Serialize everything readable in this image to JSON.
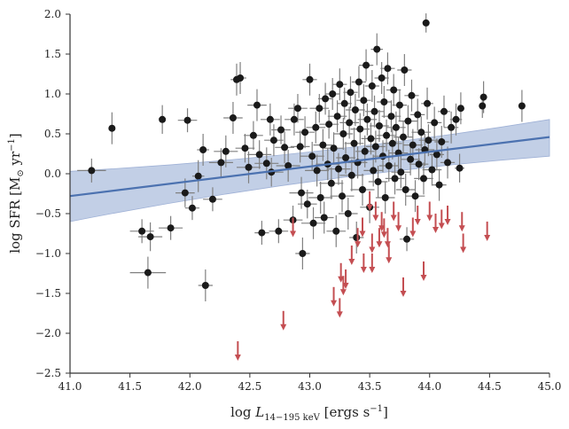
{
  "chart_data": {
    "type": "scatter",
    "title": "",
    "xlabel": {
      "main": "log ",
      "sym": "L",
      "sub": "14−195 keV",
      "unit": " [ergs s",
      "unit_sup": "−1",
      "unit_end": "]"
    },
    "ylabel": {
      "main": "log SFR [M",
      "sub": "⊙",
      "mid": " yr",
      "sup": "−1",
      "end": "]"
    },
    "xlim": [
      41.0,
      45.0
    ],
    "ylim": [
      -2.5,
      2.0
    ],
    "x_ticks": [
      "41.0",
      "41.5",
      "42.0",
      "42.5",
      "43.0",
      "43.5",
      "44.0",
      "44.5",
      "45.0"
    ],
    "y_ticks": [
      "−2.5",
      "−2.0",
      "−1.5",
      "−1.0",
      "−0.5",
      "0.0",
      "0.5",
      "1.0",
      "1.5",
      "2.0"
    ],
    "grid": false,
    "colors": {
      "points": "#1a1a1a",
      "errorbars": "#808080",
      "upper_limits": "#c44e52",
      "fit_line": "#4c72b0",
      "fit_band": "#b3c3e0"
    },
    "fit": {
      "x": [
        41.0,
        45.0
      ],
      "y": [
        -0.28,
        0.46
      ],
      "band_lower": [
        -0.6,
        0.22
      ],
      "band_upper": [
        0.03,
        0.68
      ]
    },
    "detections": [
      {
        "x": 41.18,
        "y": 0.04,
        "xerr": 0.12,
        "yerr": 0.15
      },
      {
        "x": 41.35,
        "y": 0.57,
        "xerr": 0.0,
        "yerr": 0.2
      },
      {
        "x": 41.77,
        "y": 0.68,
        "xerr": 0.0,
        "yerr": 0.18
      },
      {
        "x": 41.98,
        "y": 0.67,
        "xerr": 0.08,
        "yerr": 0.15
      },
      {
        "x": 41.6,
        "y": -0.72,
        "xerr": 0.1,
        "yerr": 0.15
      },
      {
        "x": 41.67,
        "y": -0.79,
        "xerr": 0.1,
        "yerr": 0.18
      },
      {
        "x": 41.84,
        "y": -0.68,
        "xerr": 0.1,
        "yerr": 0.15
      },
      {
        "x": 41.96,
        "y": -0.24,
        "xerr": 0.08,
        "yerr": 0.18
      },
      {
        "x": 42.02,
        "y": -0.43,
        "xerr": 0.06,
        "yerr": 0.15
      },
      {
        "x": 42.07,
        "y": -0.03,
        "xerr": 0.05,
        "yerr": 0.2
      },
      {
        "x": 42.19,
        "y": -0.32,
        "xerr": 0.08,
        "yerr": 0.15
      },
      {
        "x": 42.11,
        "y": 0.3,
        "xerr": 0.05,
        "yerr": 0.2
      },
      {
        "x": 41.65,
        "y": -1.24,
        "xerr": 0.15,
        "yerr": 0.2
      },
      {
        "x": 42.13,
        "y": -1.4,
        "xerr": 0.06,
        "yerr": 0.2
      },
      {
        "x": 42.26,
        "y": 0.14,
        "xerr": 0.1,
        "yerr": 0.18
      },
      {
        "x": 42.3,
        "y": 0.28,
        "xerr": 0.1,
        "yerr": 0.2
      },
      {
        "x": 42.36,
        "y": 0.7,
        "xerr": 0.08,
        "yerr": 0.2
      },
      {
        "x": 42.39,
        "y": 1.18,
        "xerr": 0.05,
        "yerr": 0.2
      },
      {
        "x": 42.42,
        "y": 1.2,
        "xerr": 0.05,
        "yerr": 0.2
      },
      {
        "x": 42.46,
        "y": 0.32,
        "xerr": 0.08,
        "yerr": 0.18
      },
      {
        "x": 42.49,
        "y": 0.08,
        "xerr": 0.1,
        "yerr": 0.2
      },
      {
        "x": 42.53,
        "y": 0.48,
        "xerr": 0.08,
        "yerr": 0.18
      },
      {
        "x": 42.56,
        "y": 0.86,
        "xerr": 0.08,
        "yerr": 0.2
      },
      {
        "x": 42.58,
        "y": 0.24,
        "xerr": 0.1,
        "yerr": 0.18
      },
      {
        "x": 42.6,
        "y": -0.74,
        "xerr": 0.06,
        "yerr": 0.15
      },
      {
        "x": 42.64,
        "y": 0.13,
        "xerr": 0.1,
        "yerr": 0.2
      },
      {
        "x": 42.67,
        "y": 0.68,
        "xerr": 0.08,
        "yerr": 0.2
      },
      {
        "x": 42.68,
        "y": 0.02,
        "xerr": 0.1,
        "yerr": 0.18
      },
      {
        "x": 42.7,
        "y": 0.42,
        "xerr": 0.08,
        "yerr": 0.2
      },
      {
        "x": 42.74,
        "y": -0.72,
        "xerr": 0.08,
        "yerr": 0.15
      },
      {
        "x": 42.76,
        "y": 0.55,
        "xerr": 0.08,
        "yerr": 0.18
      },
      {
        "x": 42.79,
        "y": 0.33,
        "xerr": 0.08,
        "yerr": 0.2
      },
      {
        "x": 42.82,
        "y": 0.1,
        "xerr": 0.1,
        "yerr": 0.2
      },
      {
        "x": 42.86,
        "y": -0.58,
        "xerr": 0.08,
        "yerr": 0.18
      },
      {
        "x": 42.87,
        "y": 0.68,
        "xerr": 0.08,
        "yerr": 0.2
      },
      {
        "x": 42.9,
        "y": 0.82,
        "xerr": 0.08,
        "yerr": 0.18
      },
      {
        "x": 42.92,
        "y": 0.34,
        "xerr": 0.08,
        "yerr": 0.2
      },
      {
        "x": 42.93,
        "y": -0.24,
        "xerr": 0.1,
        "yerr": 0.2
      },
      {
        "x": 42.94,
        "y": -1.0,
        "xerr": 0.06,
        "yerr": 0.2
      },
      {
        "x": 42.96,
        "y": 0.52,
        "xerr": 0.08,
        "yerr": 0.2
      },
      {
        "x": 42.98,
        "y": -0.38,
        "xerr": 0.08,
        "yerr": 0.18
      },
      {
        "x": 43.0,
        "y": 1.18,
        "xerr": 0.06,
        "yerr": 0.2
      },
      {
        "x": 43.02,
        "y": 0.22,
        "xerr": 0.1,
        "yerr": 0.18
      },
      {
        "x": 43.03,
        "y": -0.62,
        "xerr": 0.1,
        "yerr": 0.2
      },
      {
        "x": 43.05,
        "y": 0.58,
        "xerr": 0.08,
        "yerr": 0.2
      },
      {
        "x": 43.06,
        "y": 0.04,
        "xerr": 0.1,
        "yerr": 0.2
      },
      {
        "x": 43.08,
        "y": 0.82,
        "xerr": 0.08,
        "yerr": 0.18
      },
      {
        "x": 43.09,
        "y": -0.3,
        "xerr": 0.1,
        "yerr": 0.2
      },
      {
        "x": 43.11,
        "y": 0.36,
        "xerr": 0.08,
        "yerr": 0.2
      },
      {
        "x": 43.12,
        "y": -0.55,
        "xerr": 0.08,
        "yerr": 0.2
      },
      {
        "x": 43.13,
        "y": 0.94,
        "xerr": 0.06,
        "yerr": 0.2
      },
      {
        "x": 43.15,
        "y": 0.12,
        "xerr": 0.1,
        "yerr": 0.2
      },
      {
        "x": 43.16,
        "y": 0.62,
        "xerr": 0.08,
        "yerr": 0.18
      },
      {
        "x": 43.18,
        "y": -0.12,
        "xerr": 0.1,
        "yerr": 0.2
      },
      {
        "x": 43.19,
        "y": 1.0,
        "xerr": 0.06,
        "yerr": 0.2
      },
      {
        "x": 43.2,
        "y": 0.32,
        "xerr": 0.08,
        "yerr": 0.2
      },
      {
        "x": 43.22,
        "y": -0.72,
        "xerr": 0.08,
        "yerr": 0.2
      },
      {
        "x": 43.23,
        "y": 0.72,
        "xerr": 0.08,
        "yerr": 0.2
      },
      {
        "x": 43.24,
        "y": 0.06,
        "xerr": 0.1,
        "yerr": 0.2
      },
      {
        "x": 43.25,
        "y": 1.12,
        "xerr": 0.06,
        "yerr": 0.2
      },
      {
        "x": 43.27,
        "y": -0.28,
        "xerr": 0.1,
        "yerr": 0.2
      },
      {
        "x": 43.28,
        "y": 0.5,
        "xerr": 0.08,
        "yerr": 0.2
      },
      {
        "x": 43.29,
        "y": 0.88,
        "xerr": 0.06,
        "yerr": 0.2
      },
      {
        "x": 43.3,
        "y": 0.2,
        "xerr": 0.08,
        "yerr": 0.2
      },
      {
        "x": 43.32,
        "y": -0.5,
        "xerr": 0.08,
        "yerr": 0.2
      },
      {
        "x": 43.33,
        "y": 0.64,
        "xerr": 0.08,
        "yerr": 0.2
      },
      {
        "x": 43.34,
        "y": 1.02,
        "xerr": 0.06,
        "yerr": 0.2
      },
      {
        "x": 43.35,
        "y": -0.02,
        "xerr": 0.1,
        "yerr": 0.2
      },
      {
        "x": 43.37,
        "y": 0.38,
        "xerr": 0.08,
        "yerr": 0.2
      },
      {
        "x": 43.38,
        "y": 0.8,
        "xerr": 0.08,
        "yerr": 0.2
      },
      {
        "x": 43.39,
        "y": -0.8,
        "xerr": 0.06,
        "yerr": 0.2
      },
      {
        "x": 43.4,
        "y": 0.14,
        "xerr": 0.08,
        "yerr": 0.2
      },
      {
        "x": 43.41,
        "y": 1.15,
        "xerr": 0.06,
        "yerr": 0.2
      },
      {
        "x": 43.42,
        "y": 0.56,
        "xerr": 0.08,
        "yerr": 0.2
      },
      {
        "x": 43.44,
        "y": -0.2,
        "xerr": 0.1,
        "yerr": 0.2
      },
      {
        "x": 43.45,
        "y": 0.92,
        "xerr": 0.06,
        "yerr": 0.2
      },
      {
        "x": 43.46,
        "y": 0.28,
        "xerr": 0.08,
        "yerr": 0.2
      },
      {
        "x": 43.47,
        "y": 1.36,
        "xerr": 0.06,
        "yerr": 0.2
      },
      {
        "x": 43.48,
        "y": 0.68,
        "xerr": 0.08,
        "yerr": 0.2
      },
      {
        "x": 43.5,
        "y": -0.42,
        "xerr": 0.08,
        "yerr": 0.2
      },
      {
        "x": 43.51,
        "y": 0.44,
        "xerr": 0.08,
        "yerr": 0.2
      },
      {
        "x": 43.52,
        "y": 1.1,
        "xerr": 0.06,
        "yerr": 0.2
      },
      {
        "x": 43.53,
        "y": 0.04,
        "xerr": 0.08,
        "yerr": 0.2
      },
      {
        "x": 43.54,
        "y": 0.78,
        "xerr": 0.08,
        "yerr": 0.2
      },
      {
        "x": 43.55,
        "y": 0.34,
        "xerr": 0.08,
        "yerr": 0.2
      },
      {
        "x": 43.56,
        "y": 1.56,
        "xerr": 0.05,
        "yerr": 0.2
      },
      {
        "x": 43.57,
        "y": -0.1,
        "xerr": 0.08,
        "yerr": 0.2
      },
      {
        "x": 43.58,
        "y": 0.6,
        "xerr": 0.08,
        "yerr": 0.2
      },
      {
        "x": 43.6,
        "y": 1.2,
        "xerr": 0.06,
        "yerr": 0.2
      },
      {
        "x": 43.61,
        "y": 0.22,
        "xerr": 0.08,
        "yerr": 0.2
      },
      {
        "x": 43.62,
        "y": 0.9,
        "xerr": 0.06,
        "yerr": 0.2
      },
      {
        "x": 43.63,
        "y": -0.3,
        "xerr": 0.08,
        "yerr": 0.2
      },
      {
        "x": 43.64,
        "y": 0.48,
        "xerr": 0.08,
        "yerr": 0.2
      },
      {
        "x": 43.65,
        "y": 1.32,
        "xerr": 0.06,
        "yerr": 0.2
      },
      {
        "x": 43.66,
        "y": 0.1,
        "xerr": 0.08,
        "yerr": 0.2
      },
      {
        "x": 43.68,
        "y": 0.72,
        "xerr": 0.08,
        "yerr": 0.2
      },
      {
        "x": 43.69,
        "y": 0.38,
        "xerr": 0.08,
        "yerr": 0.2
      },
      {
        "x": 43.7,
        "y": 1.05,
        "xerr": 0.06,
        "yerr": 0.2
      },
      {
        "x": 43.71,
        "y": -0.06,
        "xerr": 0.08,
        "yerr": 0.2
      },
      {
        "x": 43.72,
        "y": 0.58,
        "xerr": 0.08,
        "yerr": 0.2
      },
      {
        "x": 43.74,
        "y": 0.26,
        "xerr": 0.08,
        "yerr": 0.2
      },
      {
        "x": 43.75,
        "y": 0.86,
        "xerr": 0.06,
        "yerr": 0.2
      },
      {
        "x": 43.76,
        "y": 0.02,
        "xerr": 0.08,
        "yerr": 0.2
      },
      {
        "x": 43.78,
        "y": 0.46,
        "xerr": 0.08,
        "yerr": 0.2
      },
      {
        "x": 43.79,
        "y": 1.3,
        "xerr": 0.06,
        "yerr": 0.2
      },
      {
        "x": 43.8,
        "y": -0.2,
        "xerr": 0.08,
        "yerr": 0.2
      },
      {
        "x": 43.81,
        "y": -0.82,
        "xerr": 0.06,
        "yerr": 0.15
      },
      {
        "x": 43.82,
        "y": 0.66,
        "xerr": 0.08,
        "yerr": 0.2
      },
      {
        "x": 43.84,
        "y": 0.18,
        "xerr": 0.08,
        "yerr": 0.2
      },
      {
        "x": 43.85,
        "y": 0.98,
        "xerr": 0.06,
        "yerr": 0.2
      },
      {
        "x": 43.86,
        "y": 0.36,
        "xerr": 0.08,
        "yerr": 0.2
      },
      {
        "x": 43.88,
        "y": -0.28,
        "xerr": 0.08,
        "yerr": 0.2
      },
      {
        "x": 43.9,
        "y": 0.74,
        "xerr": 0.06,
        "yerr": 0.2
      },
      {
        "x": 43.91,
        "y": 0.12,
        "xerr": 0.08,
        "yerr": 0.2
      },
      {
        "x": 43.93,
        "y": 0.52,
        "xerr": 0.08,
        "yerr": 0.2
      },
      {
        "x": 43.95,
        "y": -0.06,
        "xerr": 0.08,
        "yerr": 0.2
      },
      {
        "x": 43.96,
        "y": 0.3,
        "xerr": 0.08,
        "yerr": 0.2
      },
      {
        "x": 43.97,
        "y": 1.89,
        "xerr": 0.03,
        "yerr": 0.12
      },
      {
        "x": 43.98,
        "y": 0.88,
        "xerr": 0.05,
        "yerr": 0.2
      },
      {
        "x": 43.99,
        "y": 0.42,
        "xerr": 0.08,
        "yerr": 0.2
      },
      {
        "x": 44.02,
        "y": 0.05,
        "xerr": 0.08,
        "yerr": 0.2
      },
      {
        "x": 44.04,
        "y": 0.64,
        "xerr": 0.06,
        "yerr": 0.2
      },
      {
        "x": 44.06,
        "y": 0.24,
        "xerr": 0.06,
        "yerr": 0.2
      },
      {
        "x": 44.08,
        "y": -0.14,
        "xerr": 0.06,
        "yerr": 0.2
      },
      {
        "x": 44.1,
        "y": 0.4,
        "xerr": 0.06,
        "yerr": 0.2
      },
      {
        "x": 44.12,
        "y": 0.78,
        "xerr": 0.05,
        "yerr": 0.2
      },
      {
        "x": 44.15,
        "y": 0.14,
        "xerr": 0.06,
        "yerr": 0.2
      },
      {
        "x": 44.18,
        "y": 0.58,
        "xerr": 0.06,
        "yerr": 0.2
      },
      {
        "x": 44.22,
        "y": 0.68,
        "xerr": 0.05,
        "yerr": 0.2
      },
      {
        "x": 44.25,
        "y": 0.07,
        "xerr": 0.04,
        "yerr": 0.18
      },
      {
        "x": 44.26,
        "y": 0.82,
        "xerr": 0.03,
        "yerr": 0.2
      },
      {
        "x": 44.45,
        "y": 0.96,
        "xerr": 0.0,
        "yerr": 0.2
      },
      {
        "x": 44.44,
        "y": 0.85,
        "xerr": 0.0,
        "yerr": 0.15
      },
      {
        "x": 44.77,
        "y": 0.85,
        "xerr": 0.0,
        "yerr": 0.2
      }
    ],
    "upper_limits": [
      {
        "x": 42.4,
        "y": -2.1
      },
      {
        "x": 42.78,
        "y": -1.72
      },
      {
        "x": 42.86,
        "y": -0.55
      },
      {
        "x": 43.2,
        "y": -1.42
      },
      {
        "x": 43.25,
        "y": -1.56
      },
      {
        "x": 43.28,
        "y": -1.28
      },
      {
        "x": 43.26,
        "y": -1.12
      },
      {
        "x": 43.3,
        "y": -1.2
      },
      {
        "x": 43.4,
        "y": -0.68
      },
      {
        "x": 43.44,
        "y": -0.55
      },
      {
        "x": 43.5,
        "y": -0.22
      },
      {
        "x": 43.52,
        "y": -0.75
      },
      {
        "x": 43.55,
        "y": -0.35
      },
      {
        "x": 43.58,
        "y": -0.68
      },
      {
        "x": 43.6,
        "y": -0.48
      },
      {
        "x": 43.62,
        "y": -0.56
      },
      {
        "x": 43.65,
        "y": -0.68
      },
      {
        "x": 43.7,
        "y": -0.35
      },
      {
        "x": 43.74,
        "y": -0.48
      },
      {
        "x": 43.78,
        "y": -1.3
      },
      {
        "x": 43.86,
        "y": -0.55
      },
      {
        "x": 43.9,
        "y": -0.4
      },
      {
        "x": 43.95,
        "y": -1.1
      },
      {
        "x": 44.0,
        "y": -0.35
      },
      {
        "x": 44.05,
        "y": -0.5
      },
      {
        "x": 44.1,
        "y": -0.45
      },
      {
        "x": 44.15,
        "y": -0.4
      },
      {
        "x": 44.27,
        "y": -0.48
      },
      {
        "x": 44.28,
        "y": -0.75
      },
      {
        "x": 44.48,
        "y": -0.6
      },
      {
        "x": 43.45,
        "y": -1.0
      },
      {
        "x": 43.35,
        "y": -0.9
      },
      {
        "x": 43.52,
        "y": -1.0
      },
      {
        "x": 43.66,
        "y": -0.88
      }
    ]
  }
}
